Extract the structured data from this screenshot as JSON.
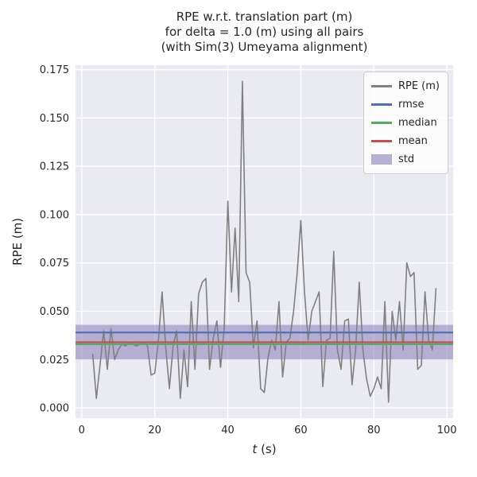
{
  "title": {
    "line1": "RPE w.r.t. translation part (m)",
    "line2": "for delta = 1.0 (m) using all pairs",
    "line3": "(with Sim(3) Umeyama alignment)"
  },
  "axes": {
    "xlabel_italic": "t",
    "xlabel_rest": " (s)",
    "ylabel": "RPE (m)"
  },
  "legend": {
    "items": [
      {
        "label": "RPE (m)",
        "type": "line",
        "color": "#808080"
      },
      {
        "label": "rmse",
        "type": "line",
        "color": "#4c72b0"
      },
      {
        "label": "median",
        "type": "line",
        "color": "#55a868"
      },
      {
        "label": "mean",
        "type": "line",
        "color": "#c44e52"
      },
      {
        "label": "std",
        "type": "patch",
        "color": "#8172b2"
      }
    ]
  },
  "chart_data": {
    "type": "line",
    "title": "RPE w.r.t. translation part (m) for delta = 1.0 (m) using all pairs (with Sim(3) Umeyama alignment)",
    "xlabel": "t (s)",
    "ylabel": "RPE (m)",
    "grid": true,
    "legend_position": "upper right",
    "xlim": [
      -1.7,
      101.7
    ],
    "ylim": [
      -0.0053,
      0.1773
    ],
    "xticks": {
      "values": [
        0,
        20,
        40,
        60,
        80,
        100
      ],
      "labels": [
        "0",
        "20",
        "40",
        "60",
        "80",
        "100"
      ]
    },
    "yticks": {
      "values": [
        0.0,
        0.025,
        0.05,
        0.075,
        0.1,
        0.125,
        0.15,
        0.175
      ],
      "labels": [
        "0.000",
        "0.025",
        "0.050",
        "0.075",
        "0.100",
        "0.125",
        "0.150",
        "0.175"
      ]
    },
    "stats": {
      "rmse": 0.039,
      "median": 0.033,
      "mean": 0.034,
      "std": 0.009
    },
    "colors": {
      "plot_bg": "#eaeaf2",
      "grid": "#ffffff",
      "rpe": "#808080",
      "rmse": "#4c72b0",
      "median": "#55a868",
      "mean": "#c44e52",
      "std": "#8172b2"
    },
    "x": [
      3,
      4,
      5,
      6,
      7,
      8,
      9,
      10,
      11,
      12,
      13,
      14,
      15,
      16,
      17,
      18,
      19,
      20,
      21,
      22,
      23,
      24,
      25,
      26,
      27,
      28,
      29,
      30,
      31,
      32,
      33,
      34,
      35,
      36,
      37,
      38,
      39,
      40,
      41,
      42,
      43,
      44,
      45,
      46,
      47,
      48,
      49,
      50,
      51,
      52,
      53,
      54,
      55,
      56,
      57,
      58,
      59,
      60,
      61,
      62,
      63,
      64,
      65,
      66,
      67,
      68,
      69,
      70,
      71,
      72,
      73,
      74,
      75,
      76,
      77,
      78,
      79,
      80,
      81,
      82,
      83,
      84,
      85,
      86,
      87,
      88,
      89,
      90,
      91,
      92,
      93,
      94,
      95,
      96,
      97
    ],
    "y": [
      0.028,
      0.005,
      0.022,
      0.04,
      0.02,
      0.041,
      0.025,
      0.03,
      0.033,
      0.032,
      0.034,
      0.033,
      0.032,
      0.033,
      0.034,
      0.032,
      0.017,
      0.018,
      0.035,
      0.06,
      0.031,
      0.01,
      0.032,
      0.04,
      0.005,
      0.03,
      0.011,
      0.055,
      0.02,
      0.059,
      0.065,
      0.067,
      0.02,
      0.036,
      0.045,
      0.021,
      0.041,
      0.107,
      0.06,
      0.093,
      0.055,
      0.169,
      0.07,
      0.065,
      0.031,
      0.045,
      0.01,
      0.008,
      0.026,
      0.035,
      0.03,
      0.055,
      0.016,
      0.034,
      0.036,
      0.05,
      0.07,
      0.097,
      0.06,
      0.035,
      0.05,
      0.055,
      0.06,
      0.011,
      0.035,
      0.036,
      0.081,
      0.03,
      0.02,
      0.045,
      0.046,
      0.012,
      0.03,
      0.065,
      0.03,
      0.015,
      0.006,
      0.01,
      0.016,
      0.01,
      0.055,
      0.003,
      0.05,
      0.035,
      0.055,
      0.03,
      0.075,
      0.068,
      0.07,
      0.02,
      0.022,
      0.06,
      0.035,
      0.03,
      0.062
    ]
  }
}
